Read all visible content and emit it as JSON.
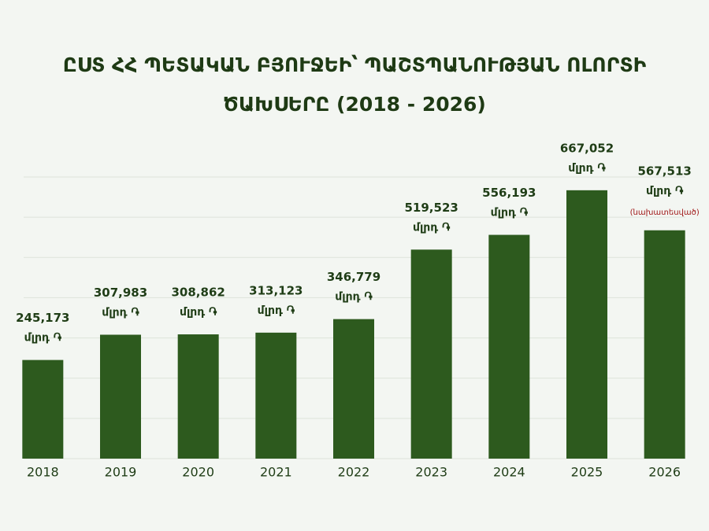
{
  "chart_data": {
    "type": "bar",
    "title": "ԸՍՏ ՀՀ ՊԵՏԱԿԱՆ ԲՅՈՒՋԵԻ՝ ՊԱՇՏՊԱՆՈՒԹՅԱՆ ՈԼՈՐՏԻ ԾԱԽՍԵՐԸ (2018 - 2026)",
    "categories": [
      "2018",
      "2019",
      "2020",
      "2021",
      "2022",
      "2023",
      "2024",
      "2025",
      "2026"
    ],
    "values": [
      245173,
      307983,
      308862,
      313123,
      346779,
      519523,
      556193,
      667052,
      567513
    ],
    "value_labels": [
      "245,173",
      "307,983",
      "308,862",
      "313,123",
      "346,779",
      "519,523",
      "556,193",
      "667,052",
      "567,513"
    ],
    "unit_label": "մլրդ ֏",
    "value_notes": [
      null,
      null,
      null,
      null,
      null,
      null,
      null,
      null,
      "(նախատեսված)"
    ],
    "color": "#2d5a1e",
    "ylim": [
      0,
      700000
    ],
    "yticks": [
      0,
      100000,
      200000,
      300000,
      400000,
      500000,
      600000,
      700000
    ],
    "grid": true
  }
}
